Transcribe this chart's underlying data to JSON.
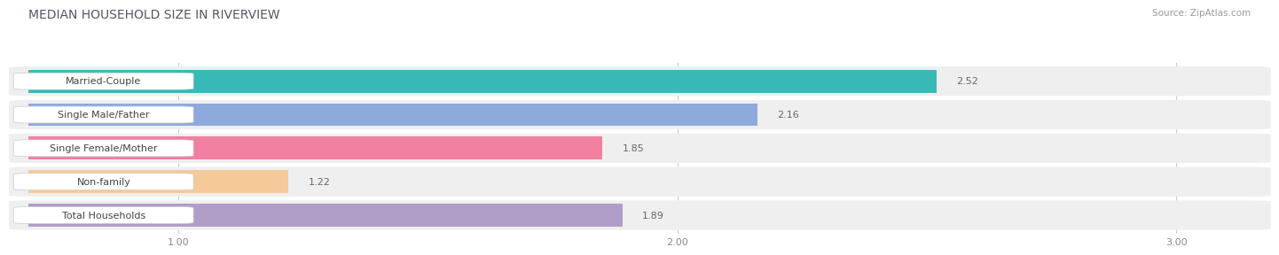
{
  "title": "MEDIAN HOUSEHOLD SIZE IN RIVERVIEW",
  "source": "Source: ZipAtlas.com",
  "categories": [
    "Married-Couple",
    "Single Male/Father",
    "Single Female/Mother",
    "Non-family",
    "Total Households"
  ],
  "values": [
    2.52,
    2.16,
    1.85,
    1.22,
    1.89
  ],
  "bar_colors": [
    "#39b8b8",
    "#8eaadc",
    "#f07fa0",
    "#f5c99a",
    "#b09ec8"
  ],
  "xlim_min": 0.7,
  "xlim_max": 3.15,
  "xticks": [
    1.0,
    2.0,
    3.0
  ],
  "bg_color": "#ffffff",
  "row_bg_color": "#f0f0f0",
  "title_fontsize": 10,
  "label_fontsize": 8,
  "value_fontsize": 8,
  "tick_fontsize": 8,
  "bar_height": 0.68
}
